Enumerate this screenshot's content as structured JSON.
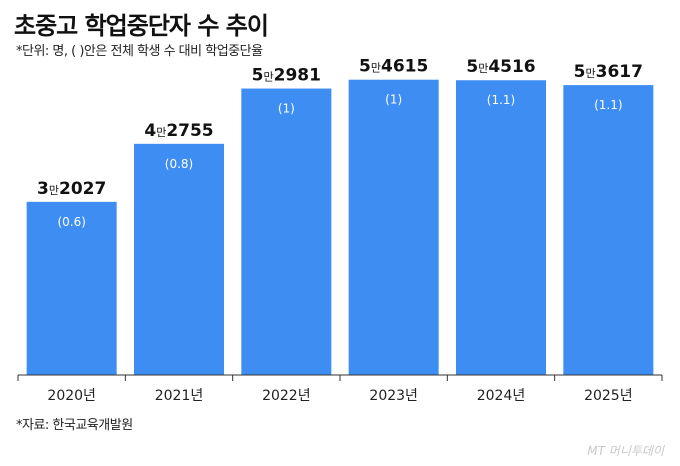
{
  "title": "초중고 학업중단자 수 추이",
  "subtitle": "*단위: 명, ( )안은 전체 학생 수 대비 학업중단율",
  "source": "*자료: 한국교육개발원",
  "watermark": "MT 머니투데이",
  "colors": {
    "bar": "#3d8df2",
    "axis": "#333333"
  },
  "chart_data": {
    "type": "bar",
    "categories": [
      "2020년",
      "2021년",
      "2022년",
      "2023년",
      "2024년",
      "2025년"
    ],
    "values": [
      32027,
      42755,
      52981,
      54615,
      54516,
      53617
    ],
    "value_labels": [
      {
        "lead": "3",
        "unit": "만",
        "rest": "2027"
      },
      {
        "lead": "4",
        "unit": "만",
        "rest": "2755"
      },
      {
        "lead": "5",
        "unit": "만",
        "rest": "2981"
      },
      {
        "lead": "5",
        "unit": "만",
        "rest": "4615"
      },
      {
        "lead": "5",
        "unit": "만",
        "rest": "4516"
      },
      {
        "lead": "5",
        "unit": "만",
        "rest": "3617"
      }
    ],
    "rates": [
      "(0.6)",
      "(0.8)",
      "(1)",
      "(1)",
      "(1.1)",
      "(1.1)"
    ],
    "title": "초중고 학업중단자 수 추이",
    "ylim": [
      0,
      59000
    ],
    "grid": false,
    "legend": "none"
  }
}
